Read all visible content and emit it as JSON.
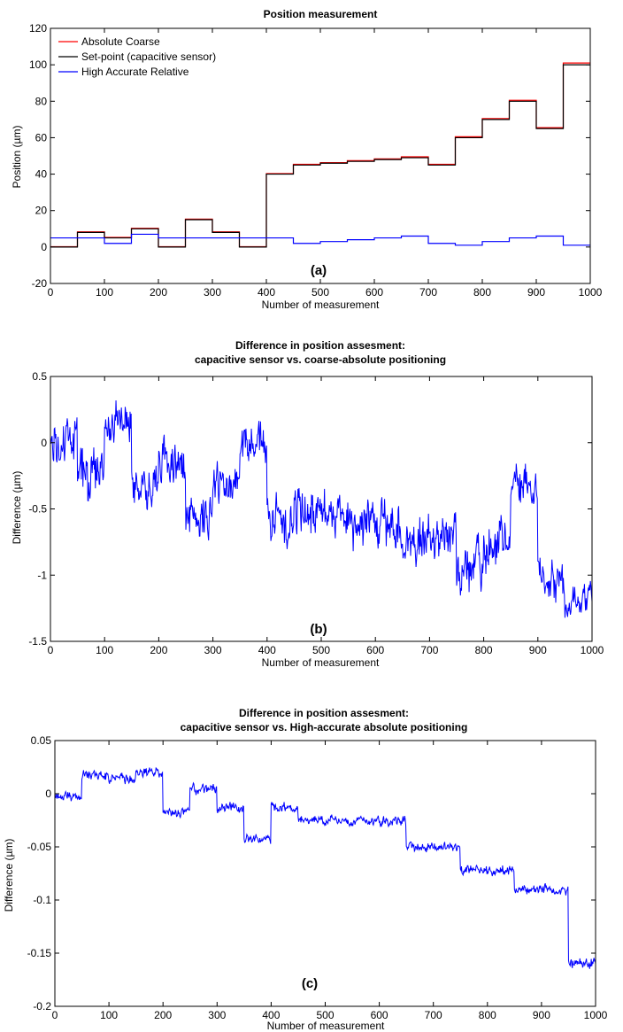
{
  "chart_data": [
    {
      "type": "line",
      "panel_label": "(a)",
      "title": "Position measurement",
      "subtitle": "",
      "xlabel": "Number of measurement",
      "ylabel": "Position (µm)",
      "xlim": [
        0,
        1000
      ],
      "ylim": [
        -20,
        120
      ],
      "xticks": [
        0,
        100,
        200,
        300,
        400,
        500,
        600,
        700,
        800,
        900,
        1000
      ],
      "yticks": [
        -20,
        0,
        20,
        40,
        60,
        80,
        100,
        120
      ],
      "grid": false,
      "legend_position": "top-left",
      "series": [
        {
          "name": "Absolute Coarse",
          "color": "#ff0000",
          "x": [
            0,
            50,
            50,
            100,
            100,
            150,
            150,
            200,
            200,
            250,
            250,
            300,
            300,
            350,
            350,
            400,
            400,
            450,
            450,
            500,
            500,
            550,
            550,
            600,
            600,
            650,
            650,
            700,
            700,
            750,
            750,
            800,
            800,
            850,
            850,
            900,
            900,
            950,
            950,
            1000
          ],
          "y": [
            0.2,
            0.2,
            8.3,
            8.3,
            5.3,
            5.3,
            10.3,
            10.3,
            0.2,
            0.2,
            15.3,
            15.3,
            8.3,
            8.3,
            0.2,
            0.2,
            40.3,
            40.3,
            45.4,
            45.4,
            46.3,
            46.3,
            47.4,
            47.4,
            48.4,
            48.4,
            49.5,
            49.5,
            45.4,
            45.4,
            60.5,
            60.5,
            70.5,
            70.5,
            80.5,
            80.5,
            65.5,
            65.5,
            101,
            101
          ]
        },
        {
          "name": "Set-point (capacitive sensor)",
          "color": "#000000",
          "x": [
            0,
            50,
            50,
            100,
            100,
            150,
            150,
            200,
            200,
            250,
            250,
            300,
            300,
            350,
            350,
            400,
            400,
            450,
            450,
            500,
            500,
            550,
            550,
            600,
            600,
            650,
            650,
            700,
            700,
            750,
            750,
            800,
            800,
            850,
            850,
            900,
            900,
            950,
            950,
            1000
          ],
          "y": [
            0,
            0,
            8,
            8,
            5,
            5,
            10,
            10,
            0,
            0,
            15,
            15,
            8,
            8,
            0,
            0,
            40,
            40,
            45,
            45,
            46,
            46,
            47,
            47,
            48,
            48,
            49,
            49,
            45,
            45,
            60,
            60,
            70,
            70,
            80,
            80,
            65,
            65,
            100,
            100
          ]
        },
        {
          "name": "High Accurate Relative",
          "color": "#0000ff",
          "x": [
            0,
            50,
            50,
            100,
            100,
            150,
            150,
            200,
            200,
            250,
            250,
            300,
            300,
            350,
            350,
            400,
            400,
            450,
            450,
            500,
            500,
            550,
            550,
            600,
            600,
            650,
            650,
            700,
            700,
            750,
            750,
            800,
            800,
            850,
            850,
            900,
            900,
            950,
            950,
            1000
          ],
          "y": [
            5,
            5,
            5,
            5,
            2,
            2,
            7,
            7,
            5,
            5,
            5,
            5,
            5,
            5,
            5,
            5,
            5,
            5,
            2,
            2,
            3,
            3,
            4,
            4,
            5,
            5,
            6,
            6,
            2,
            2,
            1,
            1,
            3,
            3,
            5,
            5,
            6,
            6,
            1,
            1
          ]
        }
      ]
    },
    {
      "type": "line",
      "panel_label": "(b)",
      "title": "Difference in position assesment:",
      "subtitle": "capacitive sensor vs. coarse-absolute positioning",
      "xlabel": "Number of measurement",
      "ylabel": "Difference (µm)",
      "xlim": [
        0,
        1000
      ],
      "ylim": [
        -1.5,
        0.5
      ],
      "xticks": [
        0,
        100,
        200,
        300,
        400,
        500,
        600,
        700,
        800,
        900,
        1000
      ],
      "yticks": [
        -1.5,
        -1,
        -0.5,
        0,
        0.5
      ],
      "grid": false,
      "series": [
        {
          "color": "#0000ff",
          "segments": [
            {
              "x0": 0,
              "x1": 50,
              "center": 0.0,
              "spread": 0.25
            },
            {
              "x0": 50,
              "x1": 100,
              "center": -0.25,
              "spread": 0.25
            },
            {
              "x0": 100,
              "x1": 150,
              "center": 0.15,
              "spread": 0.22
            },
            {
              "x0": 150,
              "x1": 200,
              "center": -0.3,
              "spread": 0.22
            },
            {
              "x0": 200,
              "x1": 250,
              "center": -0.15,
              "spread": 0.25
            },
            {
              "x0": 250,
              "x1": 300,
              "center": -0.55,
              "spread": 0.22
            },
            {
              "x0": 300,
              "x1": 350,
              "center": -0.3,
              "spread": 0.22
            },
            {
              "x0": 350,
              "x1": 400,
              "center": 0.0,
              "spread": 0.22
            },
            {
              "x0": 400,
              "x1": 450,
              "center": -0.6,
              "spread": 0.25
            },
            {
              "x0": 450,
              "x1": 500,
              "center": -0.5,
              "spread": 0.25
            },
            {
              "x0": 500,
              "x1": 550,
              "center": -0.5,
              "spread": 0.25
            },
            {
              "x0": 550,
              "x1": 600,
              "center": -0.6,
              "spread": 0.25
            },
            {
              "x0": 600,
              "x1": 650,
              "center": -0.65,
              "spread": 0.25
            },
            {
              "x0": 650,
              "x1": 700,
              "center": -0.75,
              "spread": 0.25
            },
            {
              "x0": 700,
              "x1": 750,
              "center": -0.7,
              "spread": 0.25
            },
            {
              "x0": 750,
              "x1": 800,
              "center": -0.95,
              "spread": 0.28
            },
            {
              "x0": 800,
              "x1": 850,
              "center": -0.75,
              "spread": 0.25
            },
            {
              "x0": 850,
              "x1": 900,
              "center": -0.35,
              "spread": 0.22
            },
            {
              "x0": 900,
              "x1": 950,
              "center": -1.0,
              "spread": 0.22
            },
            {
              "x0": 950,
              "x1": 1000,
              "center": -1.2,
              "spread": 0.18
            }
          ]
        }
      ]
    },
    {
      "type": "line",
      "panel_label": "(c)",
      "title": "Difference in position assesment:",
      "subtitle": "capacitive sensor vs. High-accurate absolute positioning",
      "xlabel": "Number of measurement",
      "ylabel": "Difference (µm)",
      "xlim": [
        0,
        1000
      ],
      "ylim": [
        -0.2,
        0.05
      ],
      "xticks": [
        0,
        100,
        200,
        300,
        400,
        500,
        600,
        700,
        800,
        900,
        1000
      ],
      "yticks": [
        -0.2,
        -0.15,
        -0.1,
        -0.05,
        0,
        0.05
      ],
      "grid": false,
      "series": [
        {
          "color": "#0000ff",
          "segments": [
            {
              "x0": 0,
              "x1": 50,
              "center": -0.002,
              "spread": 0.006
            },
            {
              "x0": 50,
              "x1": 100,
              "center": 0.017,
              "spread": 0.006
            },
            {
              "x0": 100,
              "x1": 150,
              "center": 0.014,
              "spread": 0.006
            },
            {
              "x0": 150,
              "x1": 200,
              "center": 0.02,
              "spread": 0.006
            },
            {
              "x0": 200,
              "x1": 250,
              "center": -0.018,
              "spread": 0.006
            },
            {
              "x0": 250,
              "x1": 300,
              "center": 0.004,
              "spread": 0.006
            },
            {
              "x0": 300,
              "x1": 350,
              "center": -0.014,
              "spread": 0.006
            },
            {
              "x0": 350,
              "x1": 400,
              "center": -0.043,
              "spread": 0.006
            },
            {
              "x0": 400,
              "x1": 450,
              "center": -0.013,
              "spread": 0.006
            },
            {
              "x0": 450,
              "x1": 650,
              "center": -0.025,
              "spread": 0.006
            },
            {
              "x0": 650,
              "x1": 750,
              "center": -0.05,
              "spread": 0.006
            },
            {
              "x0": 750,
              "x1": 850,
              "center": -0.072,
              "spread": 0.006
            },
            {
              "x0": 850,
              "x1": 950,
              "center": -0.09,
              "spread": 0.006
            },
            {
              "x0": 950,
              "x1": 1000,
              "center": -0.16,
              "spread": 0.008
            }
          ]
        }
      ]
    }
  ]
}
